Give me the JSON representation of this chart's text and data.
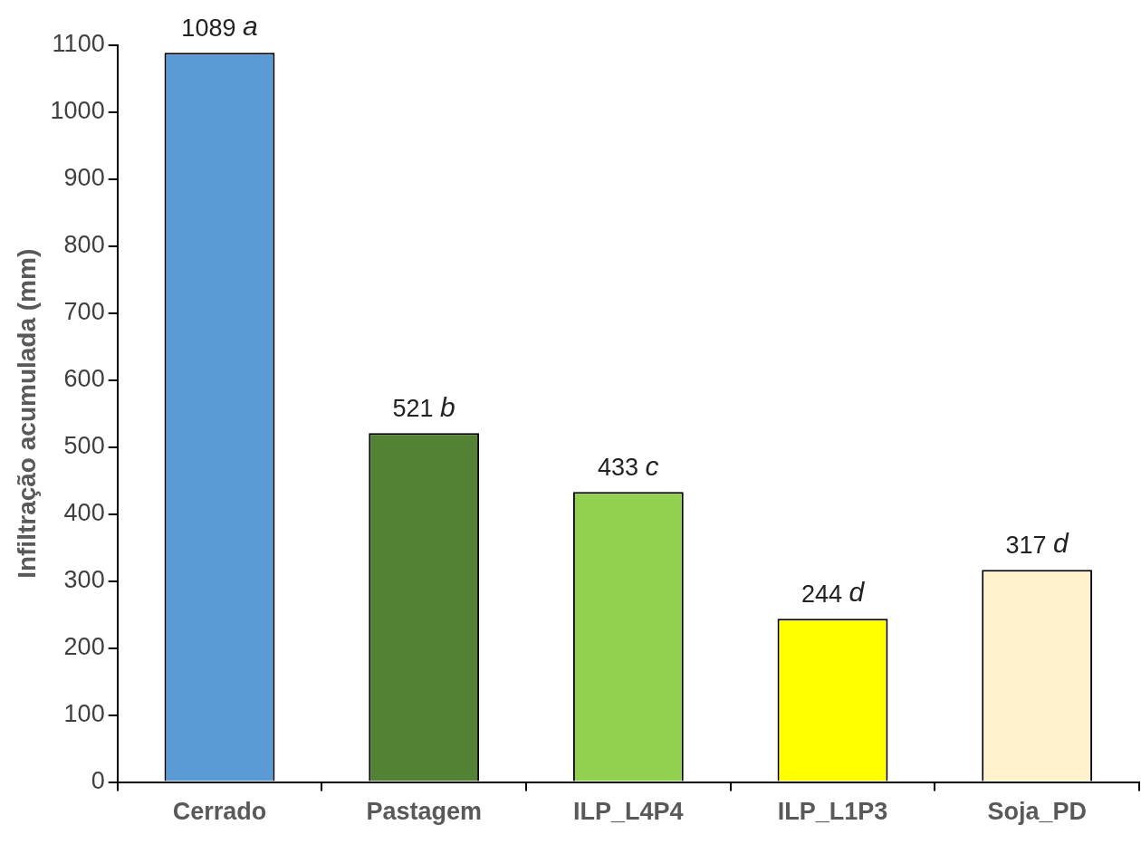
{
  "chart_data": {
    "type": "bar",
    "ylabel": "Infiltração acumulada (mm)",
    "categories": [
      "Cerrado",
      "Pastagem",
      "ILP_L4P4",
      "ILP_L1P3",
      "Soja_PD"
    ],
    "values": [
      1089,
      521,
      433,
      244,
      317
    ],
    "colors": [
      "#5b9bd5",
      "#548235",
      "#92d050",
      "#ffff00",
      "#fff2cc"
    ],
    "value_labels": [
      "1089 a",
      "521 b",
      "433 c",
      "244 d",
      "317 d"
    ],
    "ylim": [
      0,
      1100
    ],
    "yticks": [
      0,
      100,
      200,
      300,
      400,
      500,
      600,
      700,
      800,
      900,
      1000,
      1100
    ],
    "grid": false,
    "legend": false
  }
}
